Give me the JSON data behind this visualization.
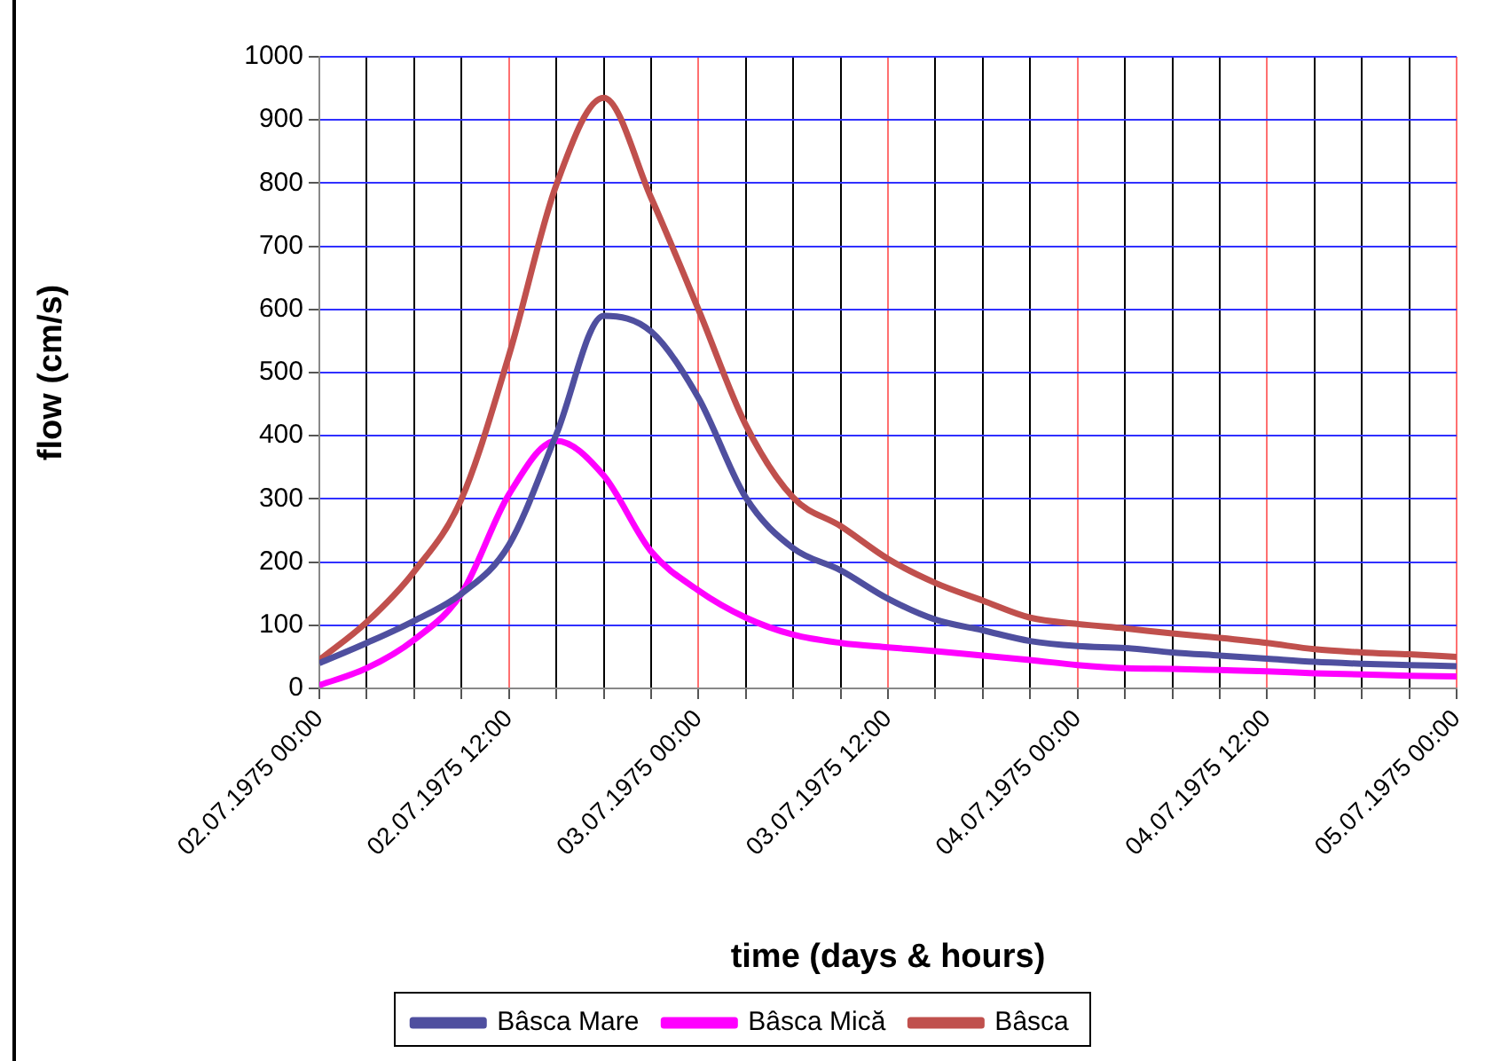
{
  "chart_data": {
    "type": "line",
    "xlabel": "time (days & hours)",
    "ylabel": "flow (cm/s)",
    "x": [
      "1975-07-02T00:00",
      "1975-07-02T03:00",
      "1975-07-02T06:00",
      "1975-07-02T09:00",
      "1975-07-02T12:00",
      "1975-07-02T15:00",
      "1975-07-02T18:00",
      "1975-07-02T21:00",
      "1975-07-03T00:00",
      "1975-07-03T03:00",
      "1975-07-03T06:00",
      "1975-07-03T09:00",
      "1975-07-03T12:00",
      "1975-07-03T15:00",
      "1975-07-03T18:00",
      "1975-07-03T21:00",
      "1975-07-04T00:00",
      "1975-07-04T03:00",
      "1975-07-04T06:00",
      "1975-07-04T09:00",
      "1975-07-04T12:00",
      "1975-07-04T15:00",
      "1975-07-04T18:00",
      "1975-07-04T21:00",
      "1975-07-05T00:00"
    ],
    "series": [
      {
        "name": "Bâsca Mare",
        "color": "#4f4f9f",
        "values": [
          40,
          72,
          107,
          150,
          227,
          402,
          590,
          565,
          460,
          302,
          222,
          187,
          142,
          109,
          92,
          75,
          67,
          64,
          57,
          52,
          47,
          42,
          39,
          37,
          35
        ]
      },
      {
        "name": "Bâsca Mică",
        "color": "#ff00ff",
        "values": [
          5,
          32,
          77,
          150,
          307,
          392,
          337,
          217,
          155,
          112,
          85,
          72,
          65,
          59,
          52,
          45,
          37,
          32,
          31,
          29,
          27,
          24,
          22,
          20,
          19
        ]
      },
      {
        "name": "Bâsca",
        "color": "#c0504d",
        "values": [
          45,
          105,
          185,
          300,
          527,
          797,
          935,
          777,
          600,
          417,
          302,
          257,
          205,
          167,
          139,
          112,
          102,
          95,
          87,
          80,
          72,
          62,
          57,
          54,
          50
        ]
      }
    ],
    "xlim": [
      "1975-07-02T00:00",
      "1975-07-05T00:00"
    ],
    "xticks": [
      {
        "value": "1975-07-02T00:00",
        "label": "02.07.1975 00:00"
      },
      {
        "value": "1975-07-02T03:00",
        "label": null
      },
      {
        "value": "1975-07-02T06:00",
        "label": null
      },
      {
        "value": "1975-07-02T09:00",
        "label": null
      },
      {
        "value": "1975-07-02T12:00",
        "label": "02.07.1975 12:00"
      },
      {
        "value": "1975-07-02T15:00",
        "label": null
      },
      {
        "value": "1975-07-02T18:00",
        "label": null
      },
      {
        "value": "1975-07-02T21:00",
        "label": null
      },
      {
        "value": "1975-07-03T00:00",
        "label": "03.07.1975 00:00"
      },
      {
        "value": "1975-07-03T03:00",
        "label": null
      },
      {
        "value": "1975-07-03T06:00",
        "label": null
      },
      {
        "value": "1975-07-03T09:00",
        "label": null
      },
      {
        "value": "1975-07-03T12:00",
        "label": "03.07.1975 12:00"
      },
      {
        "value": "1975-07-03T15:00",
        "label": null
      },
      {
        "value": "1975-07-03T18:00",
        "label": null
      },
      {
        "value": "1975-07-03T21:00",
        "label": null
      },
      {
        "value": "1975-07-04T00:00",
        "label": "04.07.1975 00:00"
      },
      {
        "value": "1975-07-04T03:00",
        "label": null
      },
      {
        "value": "1975-07-04T06:00",
        "label": null
      },
      {
        "value": "1975-07-04T09:00",
        "label": null
      },
      {
        "value": "1975-07-04T12:00",
        "label": "04.07.1975 12:00"
      },
      {
        "value": "1975-07-04T15:00",
        "label": null
      },
      {
        "value": "1975-07-04T18:00",
        "label": null
      },
      {
        "value": "1975-07-04T21:00",
        "label": null
      },
      {
        "value": "1975-07-05T00:00",
        "label": "05.07.1975 00:00"
      }
    ],
    "ylim": [
      0,
      1000
    ],
    "yticks": [
      0,
      100,
      200,
      300,
      400,
      500,
      600,
      700,
      800,
      900,
      1000
    ],
    "grid": true,
    "legend": "bottom",
    "marker": "none",
    "line_style": "solid"
  }
}
